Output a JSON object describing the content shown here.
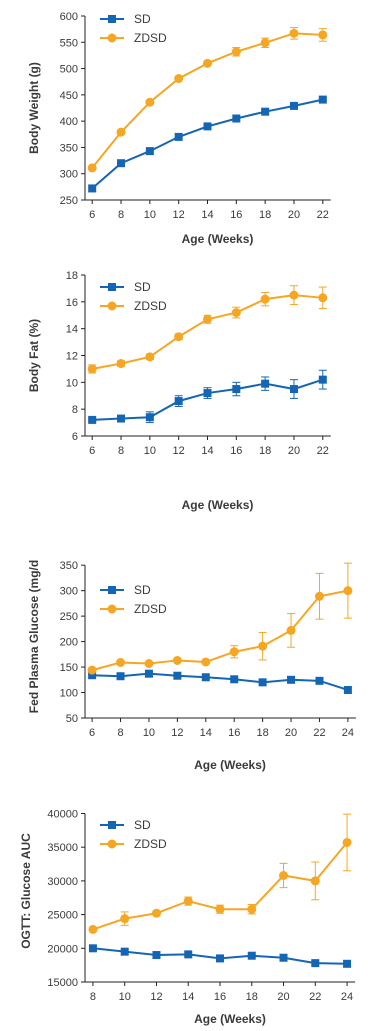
{
  "colors": {
    "SD": "#1565b5",
    "ZDSD": "#f5a623"
  },
  "chart_data": [
    {
      "type": "line",
      "xlabel": "Age (Weeks)",
      "ylabel": "Body Weight (g)",
      "ylim": [
        250,
        600
      ],
      "yticks": [
        250,
        300,
        350,
        400,
        450,
        500,
        550,
        600
      ],
      "xlim": [
        5.5,
        22.5
      ],
      "x": [
        6,
        8,
        10,
        12,
        14,
        16,
        18,
        20,
        22
      ],
      "legend_position": "top-left",
      "series": [
        {
          "name": "SD",
          "marker": "square",
          "values": [
            272,
            320,
            343,
            370,
            390,
            405,
            418,
            429,
            441
          ],
          "err": [
            0,
            0,
            0,
            0,
            0,
            0,
            0,
            0,
            0
          ]
        },
        {
          "name": "ZDSD",
          "marker": "circle",
          "values": [
            311,
            379,
            436,
            481,
            510,
            532,
            549,
            567,
            564
          ],
          "err": [
            0,
            0,
            0,
            0,
            0,
            8,
            9,
            11,
            12
          ]
        }
      ]
    },
    {
      "type": "line",
      "xlabel": "Age (Weeks)",
      "ylabel": "Body Fat (%)",
      "ylim": [
        6,
        18
      ],
      "yticks": [
        6,
        8,
        10,
        12,
        14,
        16,
        18
      ],
      "xlim": [
        5.5,
        22.5
      ],
      "x": [
        6,
        8,
        10,
        12,
        14,
        16,
        18,
        20,
        22
      ],
      "legend_position": "top-left",
      "series": [
        {
          "name": "SD",
          "marker": "square",
          "values": [
            7.2,
            7.3,
            7.4,
            8.6,
            9.2,
            9.5,
            9.9,
            9.5,
            10.2
          ],
          "err": [
            0.1,
            0.2,
            0.4,
            0.4,
            0.4,
            0.5,
            0.5,
            0.7,
            0.7
          ]
        },
        {
          "name": "ZDSD",
          "marker": "circle",
          "values": [
            11.0,
            11.4,
            11.9,
            13.4,
            14.7,
            15.2,
            16.2,
            16.5,
            16.3
          ],
          "err": [
            0.3,
            0.2,
            0.2,
            0.2,
            0.3,
            0.4,
            0.5,
            0.7,
            0.8
          ]
        }
      ]
    },
    {
      "type": "line",
      "xlabel": "Age (Weeks)",
      "ylabel": "Fed Plasma Glucose (mg/d",
      "ylim": [
        50,
        370
      ],
      "yticks": [
        50,
        100,
        150,
        200,
        250,
        300,
        350
      ],
      "xlim": [
        5.5,
        24.5
      ],
      "x": [
        6,
        8,
        10,
        12,
        14,
        16,
        18,
        20,
        22,
        24
      ],
      "legend_position": "top-left",
      "series": [
        {
          "name": "SD",
          "marker": "square",
          "values": [
            134,
            132,
            137,
            133,
            130,
            126,
            120,
            125,
            123,
            105
          ],
          "err": [
            0,
            0,
            0,
            0,
            0,
            0,
            0,
            0,
            0,
            0
          ]
        },
        {
          "name": "ZDSD",
          "marker": "circle",
          "values": [
            144,
            159,
            157,
            163,
            160,
            180,
            191,
            222,
            289,
            300
          ],
          "err": [
            0,
            0,
            0,
            0,
            0,
            12,
            27,
            33,
            45,
            54
          ]
        }
      ]
    },
    {
      "type": "line",
      "xlabel": "Age  (Weeks)",
      "ylabel": "OGTT: Glucose AUC",
      "ylim": [
        15000,
        42000
      ],
      "yticks": [
        15000,
        20000,
        25000,
        30000,
        35000,
        40000
      ],
      "xlim": [
        7.5,
        24.5
      ],
      "x": [
        8,
        10,
        12,
        14,
        16,
        18,
        20,
        22,
        24
      ],
      "legend_position": "top-left",
      "series": [
        {
          "name": "SD",
          "marker": "square",
          "values": [
            20000,
            19500,
            19000,
            19100,
            18500,
            18900,
            18600,
            17800,
            17700
          ],
          "err": [
            0,
            0,
            0,
            0,
            0,
            0,
            0,
            0,
            0
          ]
        },
        {
          "name": "ZDSD",
          "marker": "circle",
          "values": [
            22800,
            24400,
            25200,
            27000,
            25800,
            25800,
            30800,
            30000,
            35700
          ],
          "err": [
            0,
            1000,
            0,
            600,
            600,
            700,
            1800,
            2800,
            4200
          ]
        }
      ]
    }
  ]
}
